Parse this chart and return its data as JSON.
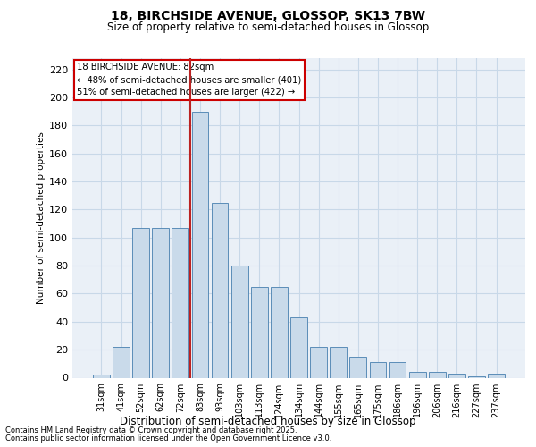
{
  "title_line1": "18, BIRCHSIDE AVENUE, GLOSSOP, SK13 7BW",
  "title_line2": "Size of property relative to semi-detached houses in Glossop",
  "xlabel": "Distribution of semi-detached houses by size in Glossop",
  "ylabel": "Number of semi-detached properties",
  "categories": [
    "31sqm",
    "41sqm",
    "52sqm",
    "62sqm",
    "72sqm",
    "83sqm",
    "93sqm",
    "103sqm",
    "113sqm",
    "124sqm",
    "134sqm",
    "144sqm",
    "155sqm",
    "165sqm",
    "175sqm",
    "186sqm",
    "196sqm",
    "206sqm",
    "216sqm",
    "227sqm",
    "237sqm"
  ],
  "values": [
    2,
    22,
    107,
    107,
    107,
    190,
    125,
    80,
    65,
    65,
    43,
    22,
    22,
    15,
    11,
    11,
    4,
    4,
    3,
    1,
    3
  ],
  "bar_color": "#c9daea",
  "bar_edge_color": "#5b8db8",
  "grid_color": "#c8d8e8",
  "bg_color": "#eaf0f7",
  "vline_color": "#bb2222",
  "vline_x_idx": 5,
  "annotation_title": "18 BIRCHSIDE AVENUE: 82sqm",
  "annotation_line2": "← 48% of semi-detached houses are smaller (401)",
  "annotation_line3": "51% of semi-detached houses are larger (422) →",
  "annotation_box_color": "#cc0000",
  "footnote1": "Contains HM Land Registry data © Crown copyright and database right 2025.",
  "footnote2": "Contains public sector information licensed under the Open Government Licence v3.0.",
  "ylim": [
    0,
    228
  ],
  "yticks": [
    0,
    20,
    40,
    60,
    80,
    100,
    120,
    140,
    160,
    180,
    200,
    220
  ]
}
